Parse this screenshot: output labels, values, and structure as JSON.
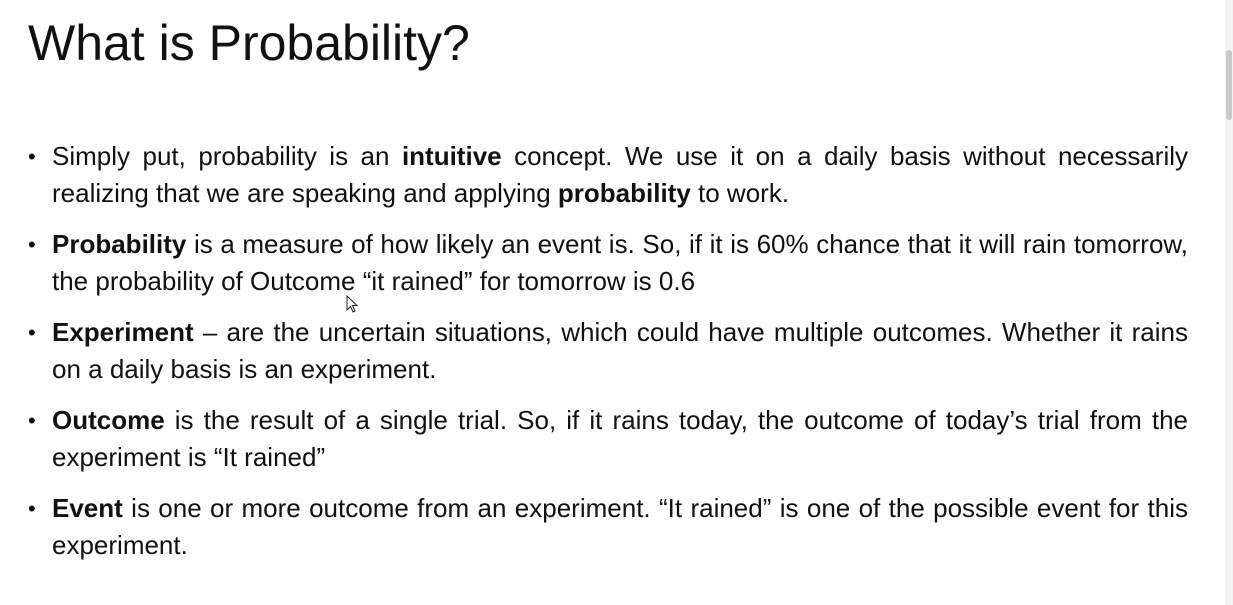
{
  "title": "What is Probability?",
  "bullets": [
    {
      "parts": [
        {
          "text": "Simply put, probability is an ",
          "bold": false
        },
        {
          "text": "intuitive",
          "bold": true
        },
        {
          "text": " concept. We use it on a daily basis without necessarily realizing that we are speaking and applying ",
          "bold": false
        },
        {
          "text": "probability",
          "bold": true
        },
        {
          "text": " to work.",
          "bold": false
        }
      ]
    },
    {
      "parts": [
        {
          "text": "Probability",
          "bold": true
        },
        {
          "text": " is a measure of how likely an event is. So, if it is 60% chance that it will rain tomorrow, the probability of Outcome “it rained” for tomorrow is 0.6",
          "bold": false
        }
      ]
    },
    {
      "parts": [
        {
          "text": "Experiment",
          "bold": true
        },
        {
          "text": " – are the uncertain situations, which could have multiple outcomes. Whether it rains on a daily basis is an experiment.",
          "bold": false
        }
      ]
    },
    {
      "parts": [
        {
          "text": "Outcome",
          "bold": true
        },
        {
          "text": " is the result of a single trial. So, if it rains today, the outcome of today’s trial from the experiment is “It rained”",
          "bold": false
        }
      ]
    },
    {
      "parts": [
        {
          "text": "Event",
          "bold": true
        },
        {
          "text": " is one or more outcome from an experiment. “It rained” is one of the possible event for this experiment.",
          "bold": false
        }
      ]
    }
  ],
  "bullet_glyph": "•",
  "icons": {
    "cursor": "mouse-pointer-icon"
  }
}
